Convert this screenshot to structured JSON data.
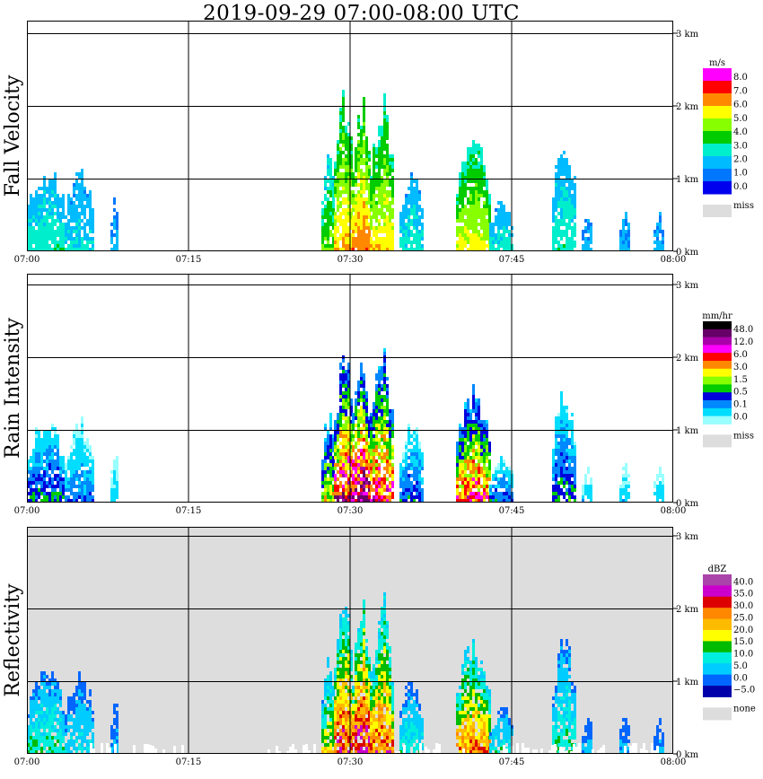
{
  "title": "2019-09-29   07:00-08:00 UTC",
  "chart_data": [
    {
      "type": "heatmap",
      "ylabel": "Fall Velocity",
      "x_ticks": [
        "07:00",
        "07:15",
        "07:30",
        "07:45",
        "08:00"
      ],
      "y_ticks": [
        "0 km",
        "1 km",
        "2 km",
        "3 km"
      ],
      "ylim_km": [
        0,
        3.2
      ],
      "grid": true,
      "colorbar": {
        "unit": "m/s",
        "labels": [
          "8.0",
          "7.0",
          "6.0",
          "5.0",
          "4.0",
          "3.0",
          "2.0",
          "1.0",
          "0.0"
        ],
        "colors": [
          "#ff00ff",
          "#ff0000",
          "#ff8800",
          "#ffff00",
          "#88ff00",
          "#00cc00",
          "#00eecc",
          "#00bbff",
          "#0077ff",
          "#0000ee"
        ],
        "missing_label": "miss",
        "missing_color": "#dddddd"
      }
    },
    {
      "type": "heatmap",
      "ylabel": "Rain Intensity",
      "x_ticks": [
        "07:00",
        "07:15",
        "07:30",
        "07:45",
        "08:00"
      ],
      "y_ticks": [
        "0 km",
        "1 km",
        "2 km",
        "3 km"
      ],
      "ylim_km": [
        0,
        3.2
      ],
      "grid": true,
      "colorbar": {
        "unit": "mm/hr",
        "labels": [
          "48.0",
          "12.0",
          "6.0",
          "3.0",
          "1.5",
          "0.5",
          "0.1",
          "0.0"
        ],
        "colors": [
          "#000000",
          "#660066",
          "#aa00aa",
          "#ff00ff",
          "#ff0000",
          "#ff8800",
          "#ffff00",
          "#88ff00",
          "#00cc00",
          "#0000dd",
          "#0088ff",
          "#00ddff",
          "#99ffff"
        ],
        "missing_label": "miss",
        "missing_color": "#dddddd"
      }
    },
    {
      "type": "heatmap",
      "ylabel": "Reflectivity",
      "x_ticks": [
        "07:00",
        "07:15",
        "07:30",
        "07:45",
        "08:00"
      ],
      "y_ticks": [
        "0 km",
        "1 km",
        "2 km",
        "3 km"
      ],
      "ylim_km": [
        0,
        3.2
      ],
      "grid": true,
      "colorbar": {
        "unit": "dBZ",
        "labels": [
          "40.0",
          "35.0",
          "30.0",
          "25.0",
          "20.0",
          "15.0",
          "10.0",
          "5.0",
          "0.0",
          "−5.0"
        ],
        "colors": [
          "#aa44aa",
          "#cc00cc",
          "#dd0000",
          "#ff8800",
          "#ffbb00",
          "#ffff00",
          "#00bb00",
          "#00eedd",
          "#00ccff",
          "#0066ff",
          "#0000aa"
        ],
        "missing_label": "none",
        "missing_color": "#dddddd"
      }
    }
  ]
}
